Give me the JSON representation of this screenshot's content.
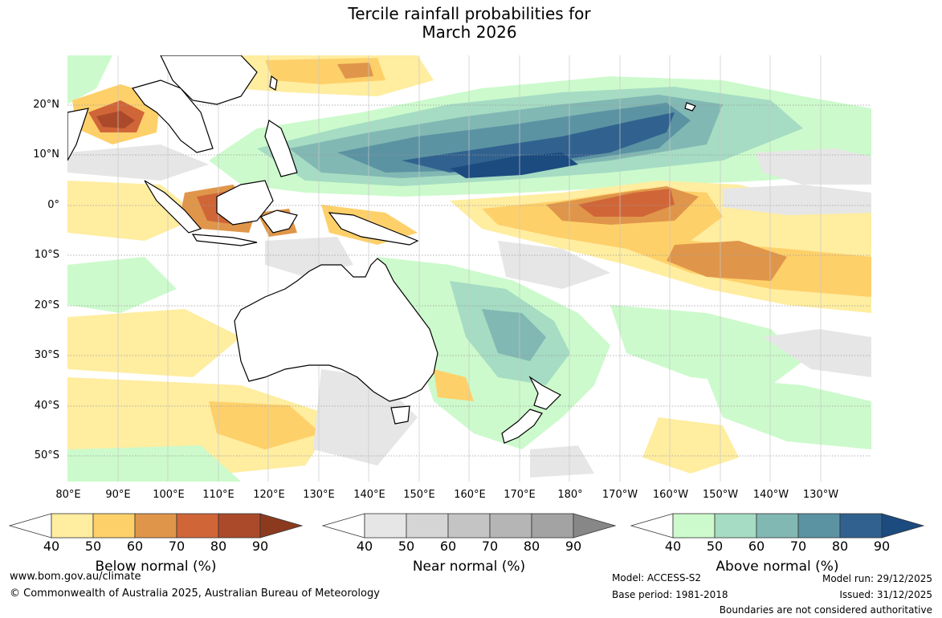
{
  "title": {
    "line1": "Tercile rainfall probabilities for",
    "line2": "March 2026"
  },
  "map": {
    "lat_labels": [
      "20°N",
      "10°N",
      "0°",
      "10°S",
      "20°S",
      "30°S",
      "40°S",
      "50°S"
    ],
    "lon_labels": [
      "80°E",
      "90°E",
      "100°E",
      "110°E",
      "120°E",
      "130°E",
      "140°E",
      "150°E",
      "160°E",
      "170°E",
      "180°",
      "170°W",
      "160°W",
      "150°W",
      "140°W",
      "130°W"
    ]
  },
  "colorbars": {
    "ticks": [
      "40",
      "50",
      "60",
      "70",
      "80",
      "90"
    ],
    "below": {
      "label": "Below normal (%)",
      "colors": [
        "#ffffff",
        "#ffeda0",
        "#fed06a",
        "#e0964a",
        "#d06638",
        "#ab4a2b",
        "#8b3a1e"
      ]
    },
    "near": {
      "label": "Near normal (%)",
      "colors": [
        "#ffffff",
        "#e6e6e6",
        "#d5d5d5",
        "#c4c4c4",
        "#b5b5b5",
        "#a3a3a3",
        "#878787"
      ]
    },
    "above": {
      "label": "Above normal (%)",
      "colors": [
        "#ffffff",
        "#ccfacc",
        "#a5dcc3",
        "#82b8b3",
        "#5b93a3",
        "#31628f",
        "#1b4b7f"
      ]
    }
  },
  "footer": {
    "website": "www.bom.gov.au/climate",
    "copyright": "© Commonwealth of Australia 2025, Australian Bureau of Meteorology",
    "model": "Model: ACCESS-S2",
    "base_period": "Base period: 1981-2018",
    "model_run": "Model run: 29/12/2025",
    "issued": "Issued: 31/12/2025",
    "disclaimer": "Boundaries are not considered authoritative"
  }
}
